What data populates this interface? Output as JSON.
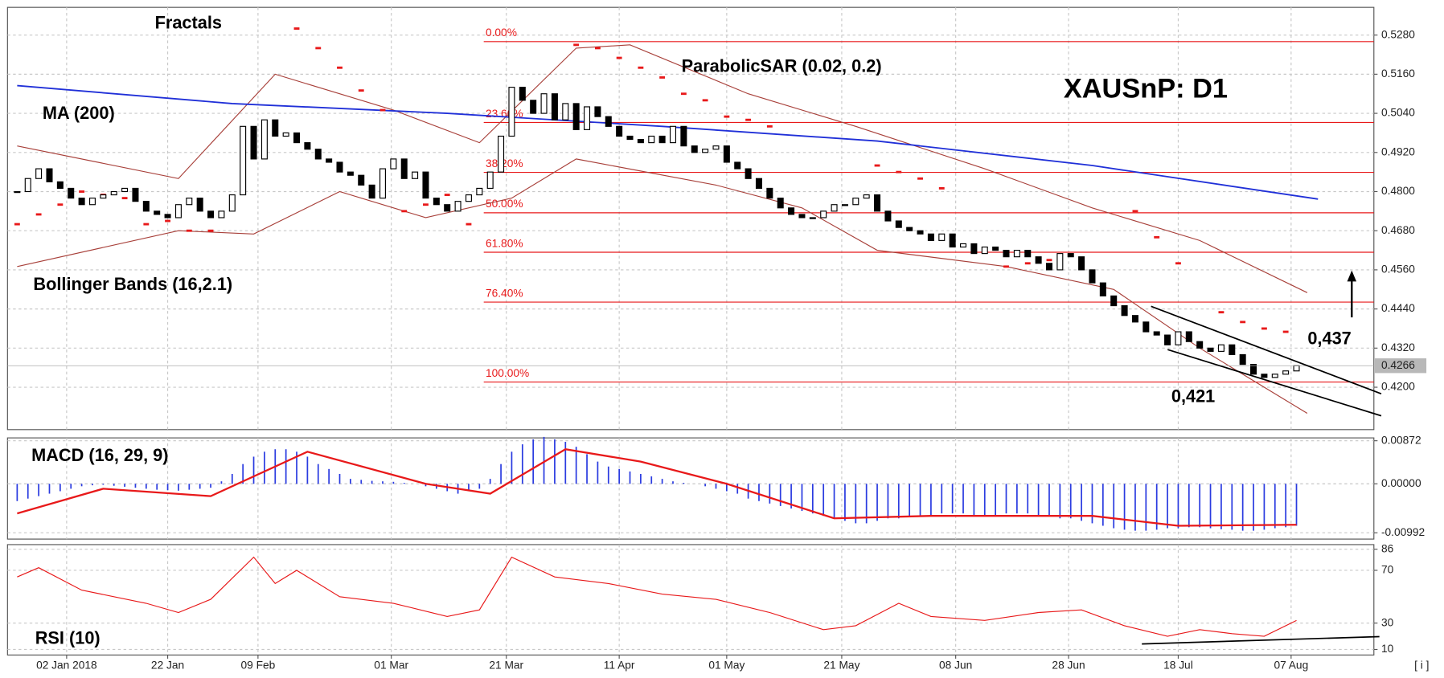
{
  "chart_data": [
    {
      "type": "candlestick",
      "title": "XAUSnP: D1",
      "labels": {
        "fractals": "Fractals",
        "ma": "MA (200)",
        "sar": "ParabolicSAR (0.02, 0.2)",
        "bb": "Bollinger Bands (16,2.1)"
      },
      "annotations": [
        {
          "text": "0,437"
        },
        {
          "text": "0,421"
        }
      ],
      "last_price": {
        "value": 0.4266,
        "label": "0.4266"
      },
      "xlim": [
        -0.9,
        126.2
      ],
      "xticks": [
        {
          "value": 4.6,
          "label": "02 Jan 2018"
        },
        {
          "value": 14,
          "label": "22 Jan"
        },
        {
          "value": 22.4,
          "label": "09 Feb"
        },
        {
          "value": 34.8,
          "label": "01 Mar"
        },
        {
          "value": 45.5,
          "label": "21 Mar"
        },
        {
          "value": 56,
          "label": "11 Apr"
        },
        {
          "value": 66,
          "label": "01 May"
        },
        {
          "value": 76.7,
          "label": "21 May"
        },
        {
          "value": 87.3,
          "label": "08 Jun"
        },
        {
          "value": 97.8,
          "label": "28 Jun"
        },
        {
          "value": 108,
          "label": "18 Jul"
        },
        {
          "value": 118.5,
          "label": "07 Aug"
        }
      ],
      "ylim": [
        0.407,
        0.5365
      ],
      "yticks": [
        {
          "value": 0.528,
          "label": "0.5280"
        },
        {
          "value": 0.516,
          "label": "0.5160"
        },
        {
          "value": 0.504,
          "label": "0.5040"
        },
        {
          "value": 0.492,
          "label": "0.4920"
        },
        {
          "value": 0.48,
          "label": "0.4800"
        },
        {
          "value": 0.468,
          "label": "0.4680"
        },
        {
          "value": 0.456,
          "label": "0.4560"
        },
        {
          "value": 0.444,
          "label": "0.4440"
        },
        {
          "value": 0.432,
          "label": "0.4320"
        },
        {
          "value": 0.42,
          "label": "0.4200"
        }
      ],
      "grid": true,
      "closes": [
        0.48,
        0.484,
        0.487,
        0.483,
        0.481,
        0.478,
        0.476,
        0.478,
        0.479,
        0.48,
        0.481,
        0.477,
        0.474,
        0.473,
        0.472,
        0.476,
        0.478,
        0.474,
        0.472,
        0.474,
        0.479,
        0.5,
        0.49,
        0.502,
        0.497,
        0.498,
        0.495,
        0.493,
        0.49,
        0.489,
        0.486,
        0.485,
        0.482,
        0.478,
        0.487,
        0.49,
        0.484,
        0.486,
        0.478,
        0.476,
        0.474,
        0.477,
        0.479,
        0.481,
        0.486,
        0.497,
        0.512,
        0.508,
        0.504,
        0.51,
        0.502,
        0.507,
        0.499,
        0.506,
        0.503,
        0.5,
        0.497,
        0.496,
        0.495,
        0.497,
        0.495,
        0.5,
        0.494,
        0.492,
        0.493,
        0.494,
        0.489,
        0.487,
        0.484,
        0.481,
        0.478,
        0.475,
        0.473,
        0.472,
        0.472,
        0.474,
        0.476,
        0.476,
        0.478,
        0.479,
        0.474,
        0.471,
        0.469,
        0.468,
        0.467,
        0.465,
        0.467,
        0.463,
        0.464,
        0.461,
        0.463,
        0.462,
        0.46,
        0.462,
        0.46,
        0.458,
        0.456,
        0.461,
        0.46,
        0.456,
        0.452,
        0.448,
        0.445,
        0.442,
        0.44,
        0.437,
        0.436,
        0.433,
        0.437,
        0.434,
        0.432,
        0.431,
        0.433,
        0.43,
        0.427,
        0.424,
        0.423,
        0.424,
        0.425,
        0.4266
      ],
      "up_color": "#ffffff",
      "down_color": "#000000",
      "ma": {
        "color": "#2030d8",
        "x": [
          0,
          20,
          40,
          60,
          80,
          100,
          121
        ],
        "values": [
          0.5125,
          0.507,
          0.504,
          0.5,
          0.4955,
          0.488,
          0.4777
        ]
      },
      "bb_upper": {
        "color": "#a8403a",
        "x": [
          0,
          15,
          24,
          35,
          43,
          52,
          57,
          68,
          78,
          90,
          100,
          110,
          120
        ],
        "values": [
          0.494,
          0.484,
          0.516,
          0.505,
          0.495,
          0.524,
          0.525,
          0.51,
          0.5,
          0.487,
          0.475,
          0.465,
          0.449
        ]
      },
      "bb_lower": {
        "color": "#a8403a",
        "x": [
          0,
          15,
          22,
          30,
          38,
          46,
          52,
          65,
          73,
          80,
          92,
          102,
          110,
          120
        ],
        "values": [
          0.457,
          0.468,
          0.467,
          0.48,
          0.472,
          0.478,
          0.49,
          0.482,
          0.475,
          0.462,
          0.457,
          0.45,
          0.432,
          0.412
        ]
      },
      "sar": {
        "color": "#e8191a",
        "x": [
          0,
          2,
          4,
          6,
          8,
          10,
          12,
          14,
          16,
          18,
          26,
          28,
          30,
          32,
          34,
          36,
          38,
          40,
          42,
          52,
          54,
          56,
          58,
          60,
          62,
          64,
          66,
          68,
          70,
          80,
          82,
          84,
          86,
          92,
          94,
          96,
          104,
          106,
          108,
          112,
          114,
          116,
          118
        ],
        "values": [
          0.47,
          0.473,
          0.476,
          0.48,
          0.479,
          0.478,
          0.47,
          0.471,
          0.468,
          0.468,
          0.53,
          0.524,
          0.518,
          0.511,
          0.505,
          0.474,
          0.476,
          0.479,
          0.47,
          0.525,
          0.524,
          0.521,
          0.518,
          0.515,
          0.51,
          0.508,
          0.503,
          0.502,
          0.5,
          0.488,
          0.486,
          0.484,
          0.481,
          0.457,
          0.458,
          0.459,
          0.474,
          0.466,
          0.458,
          0.443,
          0.44,
          0.438,
          0.437
        ]
      },
      "fib": {
        "color": "#e8191a",
        "start_x": 43.4,
        "levels": [
          {
            "value": 0.526,
            "label": "0.00%"
          },
          {
            "value": 0.5012,
            "label": "23.60%"
          },
          {
            "value": 0.4859,
            "label": "38.20%"
          },
          {
            "value": 0.4735,
            "label": "50.00%"
          },
          {
            "value": 0.4614,
            "label": "61.80%"
          },
          {
            "value": 0.4461,
            "label": "76.40%"
          },
          {
            "value": 0.4216,
            "label": "100.00%"
          }
        ]
      }
    },
    {
      "type": "macd",
      "title": "MACD (16, 29, 9)",
      "ylim": [
        -0.0112,
        0.0093
      ],
      "yticks": [
        0.00872,
        {
          "value": 0,
          "label": "0.00000"
        },
        -0.00992
      ],
      "hist_color": "#2a3be0",
      "values": [
        -0.0035,
        -0.003,
        -0.0025,
        -0.002,
        -0.0015,
        -0.001,
        -0.0005,
        -0.0003,
        -0.0002,
        -0.0004,
        -0.0006,
        -0.0008,
        -0.001,
        -0.0012,
        -0.0013,
        -0.0014,
        -0.0012,
        -0.001,
        -0.0008,
        0.0005,
        0.002,
        0.004,
        0.0055,
        0.0065,
        0.007,
        0.007,
        0.0065,
        0.0055,
        0.004,
        0.003,
        0.002,
        0.001,
        0.0008,
        0.0006,
        0.0005,
        0.0004,
        0.0002,
        0,
        -0.0005,
        -0.001,
        -0.0015,
        -0.002,
        -0.0015,
        -0.001,
        0.001,
        0.004,
        0.0065,
        0.008,
        0.009,
        0.0095,
        0.009,
        0.0085,
        0.0075,
        0.006,
        0.0045,
        0.0035,
        0.003,
        0.0025,
        0.002,
        0.0015,
        0.001,
        0.0005,
        0.0002,
        0,
        -0.0005,
        -0.001,
        -0.0015,
        -0.002,
        -0.003,
        -0.0035,
        -0.004,
        -0.0045,
        -0.005,
        -0.0055,
        -0.006,
        -0.0065,
        -0.007,
        -0.0075,
        -0.008,
        -0.008,
        -0.0075,
        -0.007,
        -0.007,
        -0.0065,
        -0.0065,
        -0.0065,
        -0.006,
        -0.006,
        -0.006,
        -0.0065,
        -0.0065,
        -0.0065,
        -0.006,
        -0.006,
        -0.006,
        -0.0065,
        -0.0065,
        -0.007,
        -0.007,
        -0.0075,
        -0.008,
        -0.0085,
        -0.009,
        -0.0093,
        -0.0095,
        -0.0095,
        -0.0093,
        -0.009,
        -0.009,
        -0.0088,
        -0.0088,
        -0.009,
        -0.0092,
        -0.0093,
        -0.0095,
        -0.0095,
        -0.0093,
        -0.009,
        -0.0088,
        -0.0085
      ],
      "signal": {
        "color": "#e8191a",
        "x": [
          0,
          8,
          18,
          27,
          38,
          44,
          51,
          58,
          66,
          76,
          85,
          100,
          108,
          119
        ],
        "values": [
          -0.006,
          -0.001,
          -0.0025,
          0.0065,
          0.0,
          -0.002,
          0.007,
          0.0045,
          0.0,
          -0.007,
          -0.0065,
          -0.0065,
          -0.0085,
          -0.0083
        ]
      }
    },
    {
      "type": "line",
      "title": "RSI (10)",
      "ylim": [
        5.8,
        89.5
      ],
      "yticks": [
        86,
        70,
        30,
        10
      ],
      "series": [
        {
          "color": "#e8191a",
          "x": [
            0,
            2,
            6,
            12,
            15,
            18,
            22,
            24,
            26,
            30,
            35,
            40,
            43,
            46,
            50,
            55,
            60,
            65,
            70,
            75,
            78,
            82,
            85,
            90,
            95,
            99,
            103,
            107,
            110,
            113,
            116,
            119
          ],
          "values": [
            65,
            72,
            55,
            45,
            38,
            48,
            80,
            60,
            70,
            50,
            45,
            35,
            40,
            80,
            65,
            60,
            52,
            48,
            38,
            25,
            28,
            45,
            35,
            32,
            38,
            40,
            28,
            20,
            25,
            22,
            20,
            32
          ]
        }
      ]
    }
  ]
}
